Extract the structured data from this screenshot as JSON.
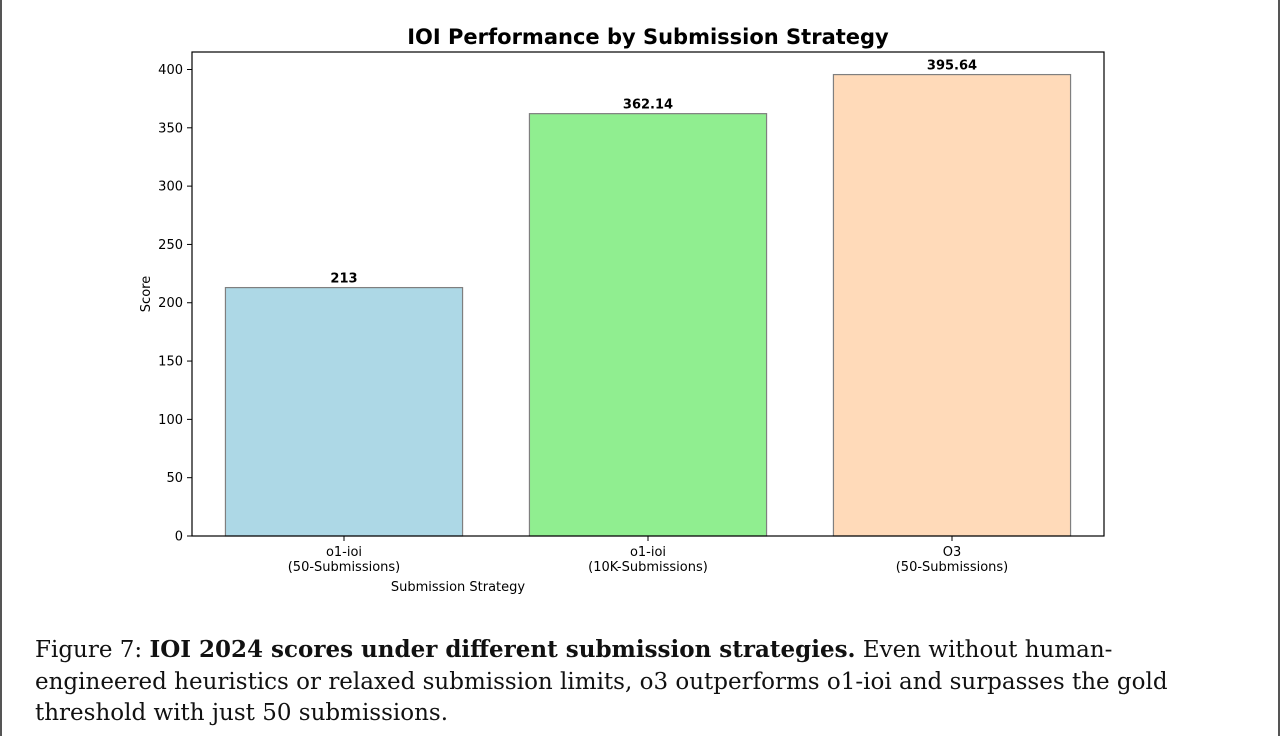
{
  "chart_data": {
    "type": "bar",
    "title": "IOI Performance by Submission Strategy",
    "xlabel": "Submission Strategy",
    "ylabel": "Score",
    "ylim": [
      0,
      415
    ],
    "yticks": [
      0,
      50,
      100,
      150,
      200,
      250,
      300,
      350,
      400
    ],
    "categories": [
      [
        "o1-ioi",
        "(50-Submissions)"
      ],
      [
        "o1-ioi",
        "(10K-Submissions)"
      ],
      [
        "O3",
        "(50-Submissions)"
      ]
    ],
    "values": [
      213,
      362.14,
      395.64
    ],
    "value_labels": [
      "213",
      "362.14",
      "395.64"
    ],
    "colors": [
      "#add8e6",
      "#90ee90",
      "#ffdab9"
    ],
    "grid": false,
    "legend": "none"
  },
  "caption": {
    "label": "Figure 7: ",
    "bold": "IOI 2024 scores under different submission strategies.",
    "rest": " Even without human-engineered heuristics or relaxed submission limits, o3 outperforms o1-ioi and surpasses the gold threshold with just 50 submissions."
  }
}
